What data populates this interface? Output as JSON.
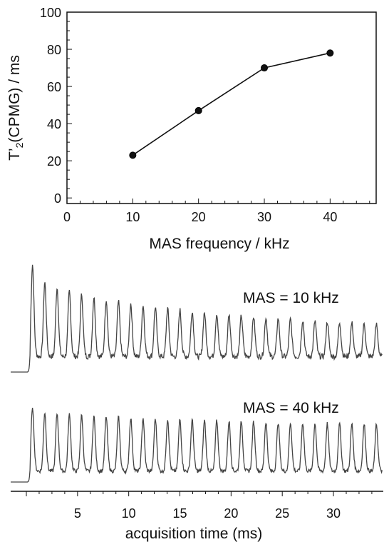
{
  "chart_data": [
    {
      "type": "line",
      "xlabel": "MAS frequency / kHz",
      "ylabel": {
        "main": "T’",
        "sub": "2",
        "rest": "(CPMG) / ms"
      },
      "xlim": [
        0,
        47
      ],
      "ylim": [
        -3,
        100
      ],
      "xticks": [
        0,
        10,
        20,
        30,
        40
      ],
      "yticks": [
        0,
        20,
        40,
        60,
        80,
        100
      ],
      "x": [
        10,
        20,
        30,
        40
      ],
      "values": [
        23,
        47,
        70,
        78
      ],
      "markers": true,
      "grid": false
    },
    {
      "type": "line",
      "xlabel": "acquisition time (ms)",
      "xlim": [
        0,
        34.8
      ],
      "xticks": [
        5,
        10,
        15,
        20,
        25,
        30
      ],
      "series": [
        {
          "label": "MAS = 10 kHz",
          "echo_count": 29,
          "first_echo_ms": 0.6,
          "echo_spacing_ms": 1.2,
          "peak_start": 0.95,
          "peak_end": 0.35
        },
        {
          "label": "MAS = 40 kHz",
          "echo_count": 29,
          "first_echo_ms": 0.6,
          "echo_spacing_ms": 1.2,
          "peak_start": 0.95,
          "peak_end": 0.72
        }
      ],
      "line_color": "#444444"
    }
  ]
}
